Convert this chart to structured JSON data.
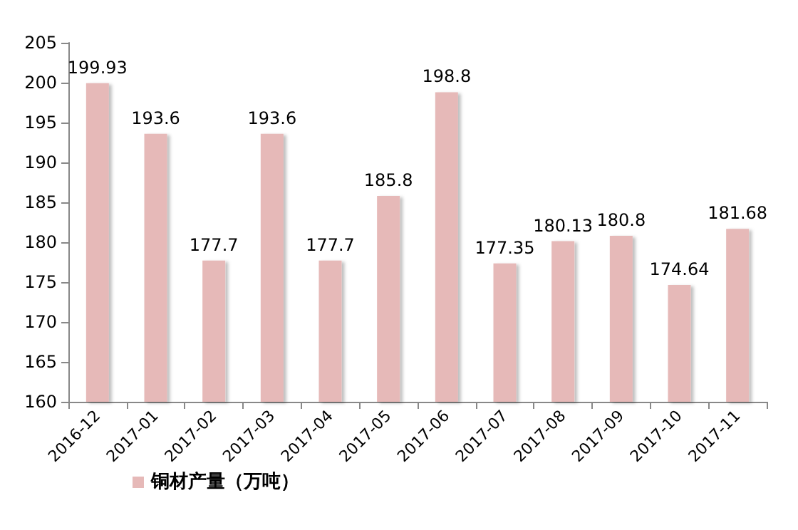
{
  "chart_data": {
    "type": "bar",
    "categories": [
      "2016-12",
      "2017-01",
      "2017-02",
      "2017-03",
      "2017-04",
      "2017-05",
      "2017-06",
      "2017-07",
      "2017-08",
      "2017-09",
      "2017-10",
      "2017-11"
    ],
    "series": [
      {
        "name": "铜材产量（万吨）",
        "color": "#e6b9b8",
        "values": [
          199.93,
          193.6,
          177.7,
          193.6,
          177.7,
          185.8,
          198.8,
          177.35,
          180.13,
          180.8,
          174.64,
          181.68
        ]
      }
    ],
    "ylim": [
      160,
      205
    ],
    "yticks": [
      160,
      165,
      170,
      175,
      180,
      185,
      190,
      195,
      200,
      205
    ],
    "grid": false,
    "legend": "bottom left",
    "data_labels": true
  }
}
